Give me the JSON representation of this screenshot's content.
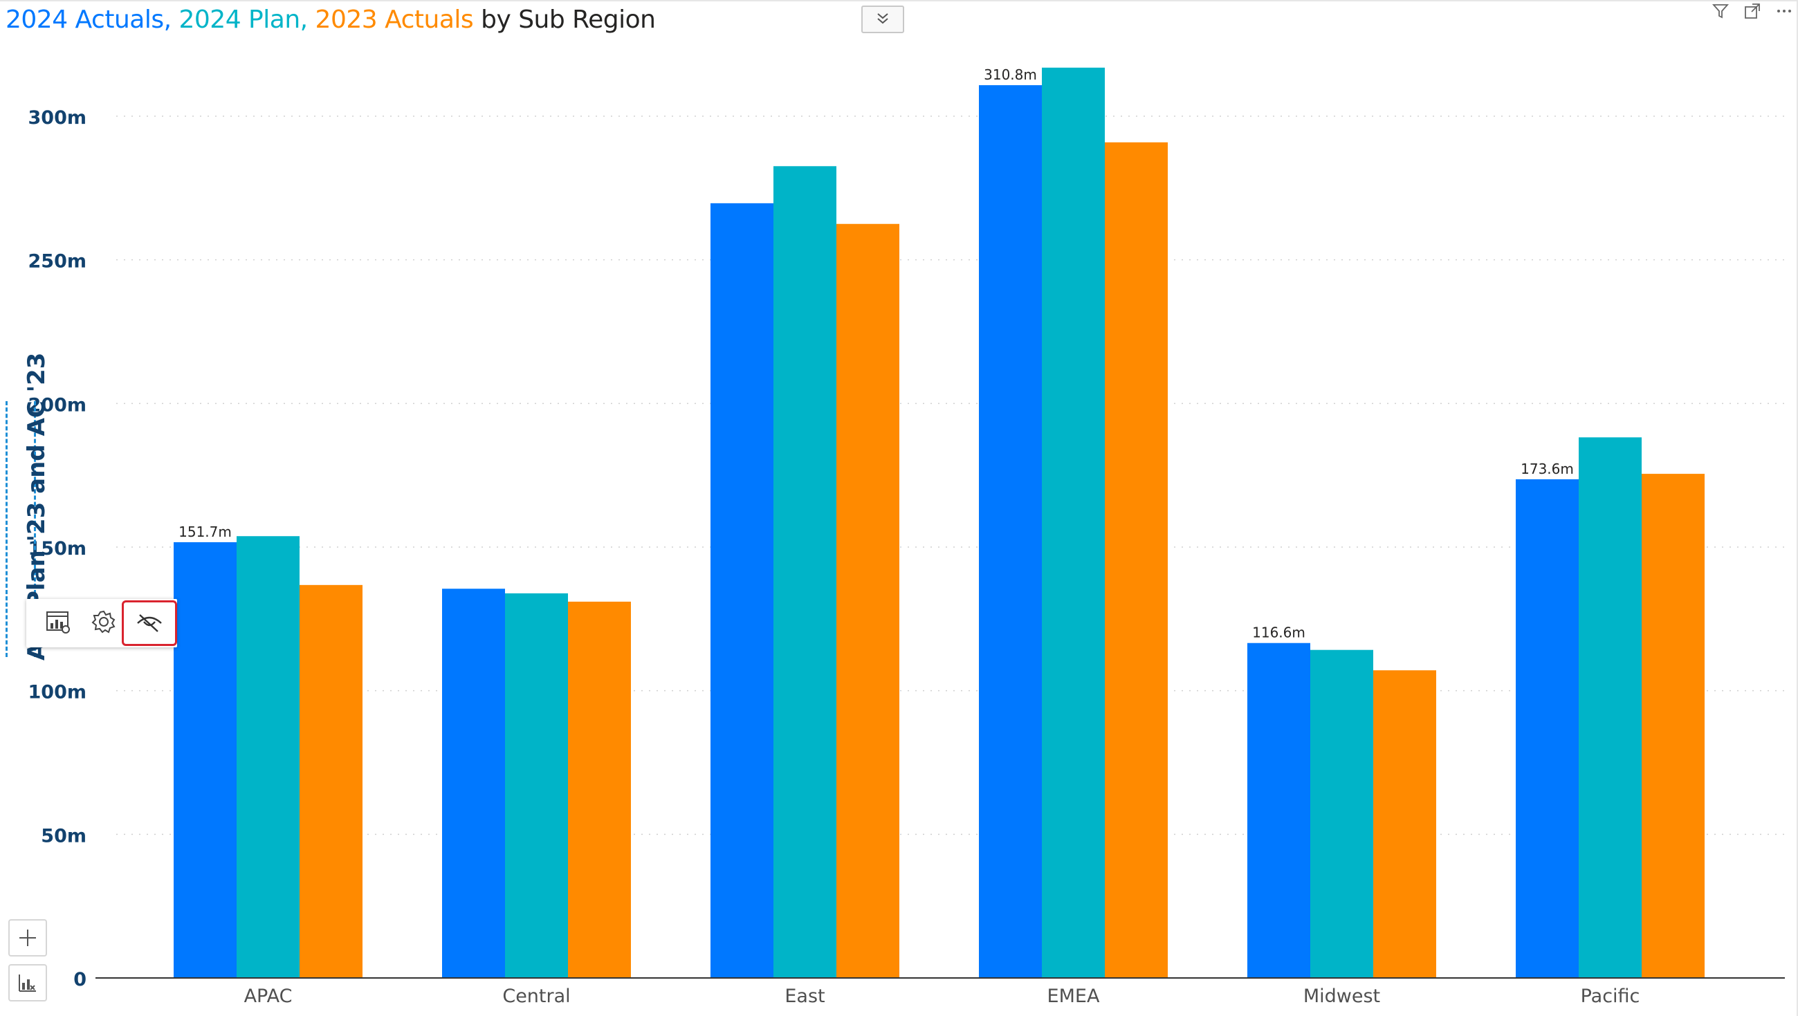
{
  "title": {
    "part1": "2024 Actuals,",
    "part2": "2024 Plan,",
    "part3": "2023 Actuals",
    "part4": "by Sub Region"
  },
  "header_icons": [
    "filter-icon",
    "focus-mode-icon",
    "more-options-icon"
  ],
  "floating_toolbar": {
    "buttons": [
      "chart-settings-icon",
      "gear-icon",
      "hide-eye-slash-icon"
    ]
  },
  "side_buttons": [
    "add-icon",
    "chart-type-icon"
  ],
  "colors": {
    "ac2024": "#0078ff",
    "plan2024": "#00b4c8",
    "ac2023": "#ff8a00",
    "axis_text": "#12426e",
    "category_text": "#505050"
  },
  "chart_data": {
    "type": "bar",
    "categories": [
      "APAC",
      "Central",
      "East",
      "EMEA",
      "Midwest",
      "Pacific"
    ],
    "series": [
      {
        "name": "2024 Actuals",
        "color": "#0078ff",
        "values": [
          151.7,
          135.5,
          269.7,
          310.8,
          116.6,
          173.6
        ]
      },
      {
        "name": "2024 Plan",
        "color": "#00b4c8",
        "values": [
          153.8,
          133.9,
          282.6,
          316.9,
          114.2,
          188.2
        ]
      },
      {
        "name": "2023 Actuals",
        "color": "#ff8a00",
        "values": [
          136.8,
          131.0,
          262.5,
          290.9,
          107.1,
          175.5
        ]
      }
    ],
    "data_labels": [
      "151.7m",
      "",
      "",
      "310.8m",
      "116.6m",
      "173.6m"
    ],
    "yticks": [
      "0",
      "50m",
      "100m",
      "150m",
      "200m",
      "250m",
      "300m"
    ],
    "ylim": [
      0,
      320
    ],
    "ylabel": "AC, Plan '23 and AC '23",
    "grid": true
  }
}
